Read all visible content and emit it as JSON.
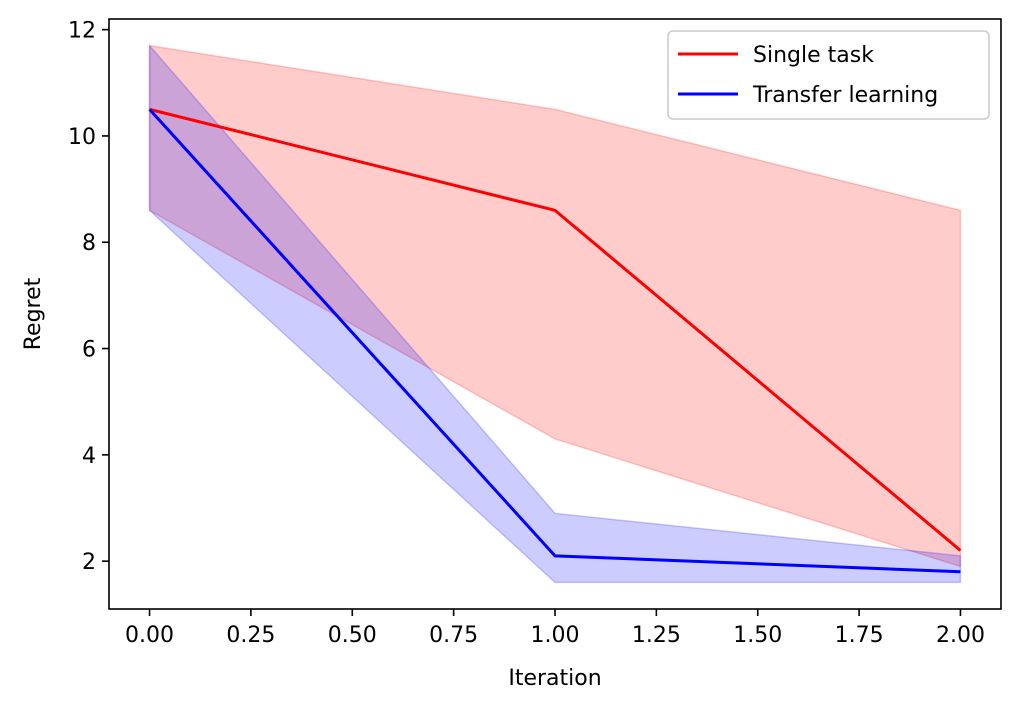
{
  "chart_data": {
    "type": "line",
    "title": "",
    "xlabel": "Iteration",
    "ylabel": "Regret",
    "xlim": [
      -0.1,
      2.1
    ],
    "ylim": [
      1.1,
      12.2
    ],
    "x": [
      0,
      1,
      2
    ],
    "x_ticks": [
      0,
      0.25,
      0.5,
      0.75,
      1.0,
      1.25,
      1.5,
      1.75,
      2.0
    ],
    "x_tick_labels": [
      "0.00",
      "0.25",
      "0.50",
      "0.75",
      "1.00",
      "1.25",
      "1.50",
      "1.75",
      "2.00"
    ],
    "y_ticks": [
      2,
      4,
      6,
      8,
      10,
      12
    ],
    "y_tick_labels": [
      "2",
      "4",
      "6",
      "8",
      "10",
      "12"
    ],
    "grid": false,
    "legend_position": "top-right",
    "series": [
      {
        "name": "Single task",
        "color": "#ff0000",
        "band_color": "#ff0000",
        "values": [
          10.5,
          8.6,
          2.2
        ],
        "lower": [
          8.6,
          4.3,
          1.9
        ],
        "upper": [
          11.7,
          10.5,
          8.6
        ]
      },
      {
        "name": "Transfer learning",
        "color": "#0000ff",
        "band_color": "#0000ff",
        "values": [
          10.5,
          2.1,
          1.8
        ],
        "lower": [
          8.6,
          1.6,
          1.6
        ],
        "upper": [
          11.7,
          2.9,
          2.1
        ]
      }
    ]
  }
}
